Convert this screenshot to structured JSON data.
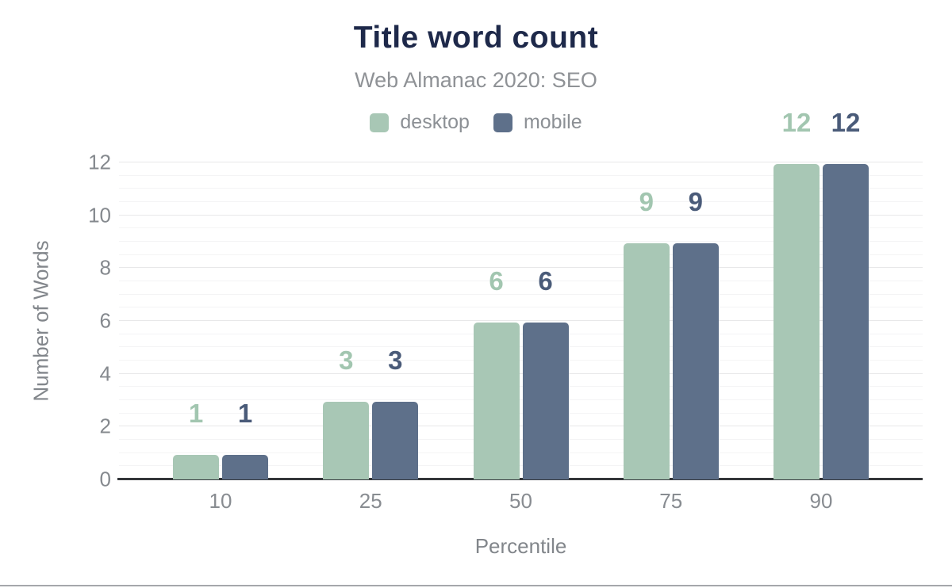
{
  "chart_data": {
    "type": "bar",
    "title": "Title word count",
    "subtitle": "Web Almanac 2020: SEO",
    "xlabel": "Percentile",
    "ylabel": "Number of Words",
    "categories": [
      "10",
      "25",
      "50",
      "75",
      "90"
    ],
    "series": [
      {
        "name": "desktop",
        "color": "#a8c7b5",
        "label_color": "#a2c6b0",
        "values": [
          1,
          3,
          6,
          9,
          12
        ]
      },
      {
        "name": "mobile",
        "color": "#5e708a",
        "label_color": "#4a5b79",
        "values": [
          1,
          3,
          6,
          9,
          12
        ]
      }
    ],
    "ylim": [
      0,
      12
    ],
    "yticks": [
      0,
      2,
      4,
      6,
      8,
      10,
      12
    ],
    "grid": "horizontal, minor every 0.5, major every 2",
    "legend_position": "top",
    "colors": {
      "title": "#1e294a",
      "subtitle": "#8f9296",
      "axis_text": "#85898e",
      "baseline": "#33363a",
      "gridline_minor": "#f4f4f5",
      "gridline_major": "#e8e8e9"
    }
  }
}
